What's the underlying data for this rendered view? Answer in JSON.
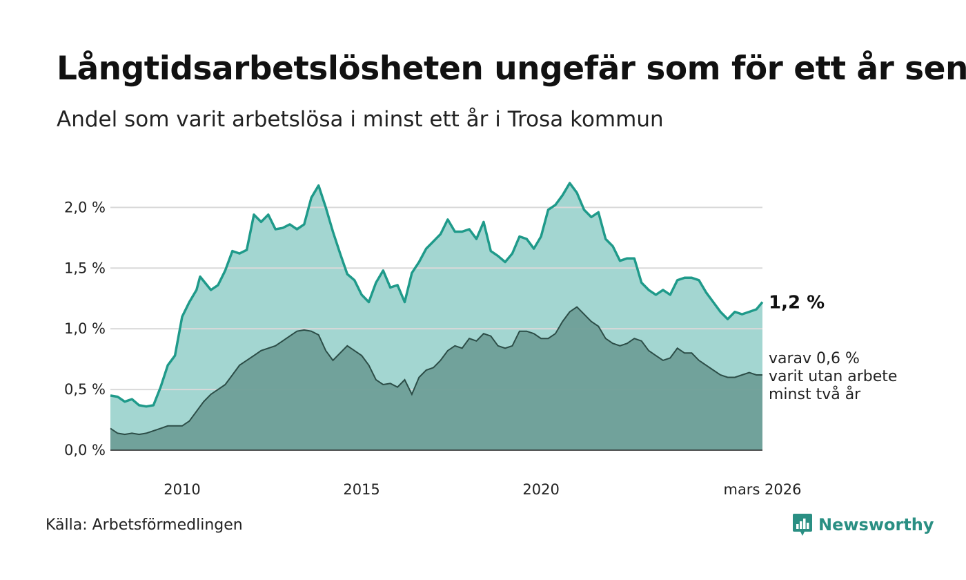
{
  "title": "Långtidsarbetslösheten ungefär som för ett år sen",
  "subtitle": "Andel som varit arbetslösa i minst ett år i Trosa kommun",
  "source": "Källa: Arbetsförmedlingen",
  "brand": "Newsworthy",
  "colors": {
    "upper_line": "#1f9a8a",
    "upper_fill": "#a3d6d1",
    "lower_line": "#2c4d47",
    "lower_fill": "#6f9f98",
    "grid": "#d9d9d9",
    "text": "#111111"
  },
  "chart_data": {
    "type": "area",
    "title": "Långtidsarbetslösheten ungefär som för ett år sen",
    "ylim": [
      0,
      2.4
    ],
    "xlim": [
      2008.0,
      2026.17
    ],
    "y_ticks": [
      {
        "value": 0.0,
        "label": "0,0 %"
      },
      {
        "value": 0.5,
        "label": "0,5 %"
      },
      {
        "value": 1.0,
        "label": "1,0 %"
      },
      {
        "value": 1.5,
        "label": "1,5 %"
      },
      {
        "value": 2.0,
        "label": "2,0 %"
      }
    ],
    "x_ticks": [
      {
        "value": 2010,
        "label": "2010"
      },
      {
        "value": 2015,
        "label": "2015"
      },
      {
        "value": 2020,
        "label": "2020"
      },
      {
        "value": 2026.17,
        "label": "mars 2026"
      }
    ],
    "end_labels": {
      "upper": "1,2 %",
      "lower": [
        "varav 0,6 %",
        "varit utan arbete",
        "minst två år"
      ]
    },
    "series": [
      {
        "name": "minst ett år",
        "points": [
          [
            2008.0,
            0.45
          ],
          [
            2008.2,
            0.44
          ],
          [
            2008.4,
            0.4
          ],
          [
            2008.6,
            0.42
          ],
          [
            2008.8,
            0.37
          ],
          [
            2009.0,
            0.36
          ],
          [
            2009.2,
            0.37
          ],
          [
            2009.4,
            0.52
          ],
          [
            2009.6,
            0.7
          ],
          [
            2009.8,
            0.78
          ],
          [
            2010.0,
            1.1
          ],
          [
            2010.2,
            1.22
          ],
          [
            2010.4,
            1.32
          ],
          [
            2010.5,
            1.43
          ],
          [
            2010.8,
            1.32
          ],
          [
            2011.0,
            1.36
          ],
          [
            2011.2,
            1.48
          ],
          [
            2011.4,
            1.64
          ],
          [
            2011.6,
            1.62
          ],
          [
            2011.8,
            1.65
          ],
          [
            2012.0,
            1.94
          ],
          [
            2012.2,
            1.88
          ],
          [
            2012.4,
            1.94
          ],
          [
            2012.6,
            1.82
          ],
          [
            2012.8,
            1.83
          ],
          [
            2013.0,
            1.86
          ],
          [
            2013.2,
            1.82
          ],
          [
            2013.4,
            1.86
          ],
          [
            2013.6,
            2.08
          ],
          [
            2013.8,
            2.18
          ],
          [
            2014.0,
            2.0
          ],
          [
            2014.2,
            1.8
          ],
          [
            2014.4,
            1.62
          ],
          [
            2014.6,
            1.45
          ],
          [
            2014.8,
            1.4
          ],
          [
            2015.0,
            1.28
          ],
          [
            2015.2,
            1.22
          ],
          [
            2015.4,
            1.38
          ],
          [
            2015.6,
            1.48
          ],
          [
            2015.8,
            1.34
          ],
          [
            2016.0,
            1.36
          ],
          [
            2016.2,
            1.22
          ],
          [
            2016.4,
            1.46
          ],
          [
            2016.6,
            1.55
          ],
          [
            2016.8,
            1.66
          ],
          [
            2017.0,
            1.72
          ],
          [
            2017.2,
            1.78
          ],
          [
            2017.4,
            1.9
          ],
          [
            2017.6,
            1.8
          ],
          [
            2017.8,
            1.8
          ],
          [
            2018.0,
            1.82
          ],
          [
            2018.2,
            1.74
          ],
          [
            2018.4,
            1.88
          ],
          [
            2018.6,
            1.64
          ],
          [
            2018.8,
            1.6
          ],
          [
            2019.0,
            1.55
          ],
          [
            2019.2,
            1.62
          ],
          [
            2019.4,
            1.76
          ],
          [
            2019.6,
            1.74
          ],
          [
            2019.8,
            1.66
          ],
          [
            2020.0,
            1.76
          ],
          [
            2020.2,
            1.98
          ],
          [
            2020.4,
            2.02
          ],
          [
            2020.6,
            2.1
          ],
          [
            2020.8,
            2.2
          ],
          [
            2021.0,
            2.12
          ],
          [
            2021.2,
            1.98
          ],
          [
            2021.4,
            1.92
          ],
          [
            2021.6,
            1.96
          ],
          [
            2021.8,
            1.74
          ],
          [
            2022.0,
            1.68
          ],
          [
            2022.2,
            1.56
          ],
          [
            2022.4,
            1.58
          ],
          [
            2022.6,
            1.58
          ],
          [
            2022.8,
            1.38
          ],
          [
            2023.0,
            1.32
          ],
          [
            2023.2,
            1.28
          ],
          [
            2023.4,
            1.32
          ],
          [
            2023.6,
            1.28
          ],
          [
            2023.8,
            1.4
          ],
          [
            2024.0,
            1.42
          ],
          [
            2024.2,
            1.42
          ],
          [
            2024.4,
            1.4
          ],
          [
            2024.6,
            1.3
          ],
          [
            2024.8,
            1.22
          ],
          [
            2025.0,
            1.14
          ],
          [
            2025.2,
            1.08
          ],
          [
            2025.4,
            1.14
          ],
          [
            2025.6,
            1.12
          ],
          [
            2025.8,
            1.14
          ],
          [
            2026.0,
            1.16
          ],
          [
            2026.17,
            1.22
          ]
        ]
      },
      {
        "name": "varav minst två år",
        "points": [
          [
            2008.0,
            0.18
          ],
          [
            2008.2,
            0.14
          ],
          [
            2008.4,
            0.13
          ],
          [
            2008.6,
            0.14
          ],
          [
            2008.8,
            0.13
          ],
          [
            2009.0,
            0.14
          ],
          [
            2009.2,
            0.16
          ],
          [
            2009.4,
            0.18
          ],
          [
            2009.6,
            0.2
          ],
          [
            2009.8,
            0.2
          ],
          [
            2010.0,
            0.2
          ],
          [
            2010.2,
            0.24
          ],
          [
            2010.4,
            0.32
          ],
          [
            2010.6,
            0.4
          ],
          [
            2010.8,
            0.46
          ],
          [
            2011.0,
            0.5
          ],
          [
            2011.2,
            0.54
          ],
          [
            2011.4,
            0.62
          ],
          [
            2011.6,
            0.7
          ],
          [
            2011.8,
            0.74
          ],
          [
            2012.0,
            0.78
          ],
          [
            2012.2,
            0.82
          ],
          [
            2012.4,
            0.84
          ],
          [
            2012.6,
            0.86
          ],
          [
            2012.8,
            0.9
          ],
          [
            2013.0,
            0.94
          ],
          [
            2013.2,
            0.98
          ],
          [
            2013.4,
            0.99
          ],
          [
            2013.6,
            0.98
          ],
          [
            2013.8,
            0.95
          ],
          [
            2014.0,
            0.82
          ],
          [
            2014.2,
            0.74
          ],
          [
            2014.4,
            0.8
          ],
          [
            2014.6,
            0.86
          ],
          [
            2014.8,
            0.82
          ],
          [
            2015.0,
            0.78
          ],
          [
            2015.2,
            0.7
          ],
          [
            2015.4,
            0.58
          ],
          [
            2015.6,
            0.54
          ],
          [
            2015.8,
            0.55
          ],
          [
            2016.0,
            0.52
          ],
          [
            2016.2,
            0.58
          ],
          [
            2016.4,
            0.46
          ],
          [
            2016.6,
            0.6
          ],
          [
            2016.8,
            0.66
          ],
          [
            2017.0,
            0.68
          ],
          [
            2017.2,
            0.74
          ],
          [
            2017.4,
            0.82
          ],
          [
            2017.6,
            0.86
          ],
          [
            2017.8,
            0.84
          ],
          [
            2018.0,
            0.92
          ],
          [
            2018.2,
            0.9
          ],
          [
            2018.4,
            0.96
          ],
          [
            2018.6,
            0.94
          ],
          [
            2018.8,
            0.86
          ],
          [
            2019.0,
            0.84
          ],
          [
            2019.2,
            0.86
          ],
          [
            2019.4,
            0.98
          ],
          [
            2019.6,
            0.98
          ],
          [
            2019.8,
            0.96
          ],
          [
            2020.0,
            0.92
          ],
          [
            2020.2,
            0.92
          ],
          [
            2020.4,
            0.96
          ],
          [
            2020.6,
            1.06
          ],
          [
            2020.8,
            1.14
          ],
          [
            2021.0,
            1.18
          ],
          [
            2021.2,
            1.12
          ],
          [
            2021.4,
            1.06
          ],
          [
            2021.6,
            1.02
          ],
          [
            2021.8,
            0.92
          ],
          [
            2022.0,
            0.88
          ],
          [
            2022.2,
            0.86
          ],
          [
            2022.4,
            0.88
          ],
          [
            2022.6,
            0.92
          ],
          [
            2022.8,
            0.9
          ],
          [
            2023.0,
            0.82
          ],
          [
            2023.2,
            0.78
          ],
          [
            2023.4,
            0.74
          ],
          [
            2023.6,
            0.76
          ],
          [
            2023.8,
            0.84
          ],
          [
            2024.0,
            0.8
          ],
          [
            2024.2,
            0.8
          ],
          [
            2024.4,
            0.74
          ],
          [
            2024.6,
            0.7
          ],
          [
            2024.8,
            0.66
          ],
          [
            2025.0,
            0.62
          ],
          [
            2025.2,
            0.6
          ],
          [
            2025.4,
            0.6
          ],
          [
            2025.6,
            0.62
          ],
          [
            2025.8,
            0.64
          ],
          [
            2026.0,
            0.62
          ],
          [
            2026.17,
            0.62
          ]
        ]
      }
    ]
  }
}
